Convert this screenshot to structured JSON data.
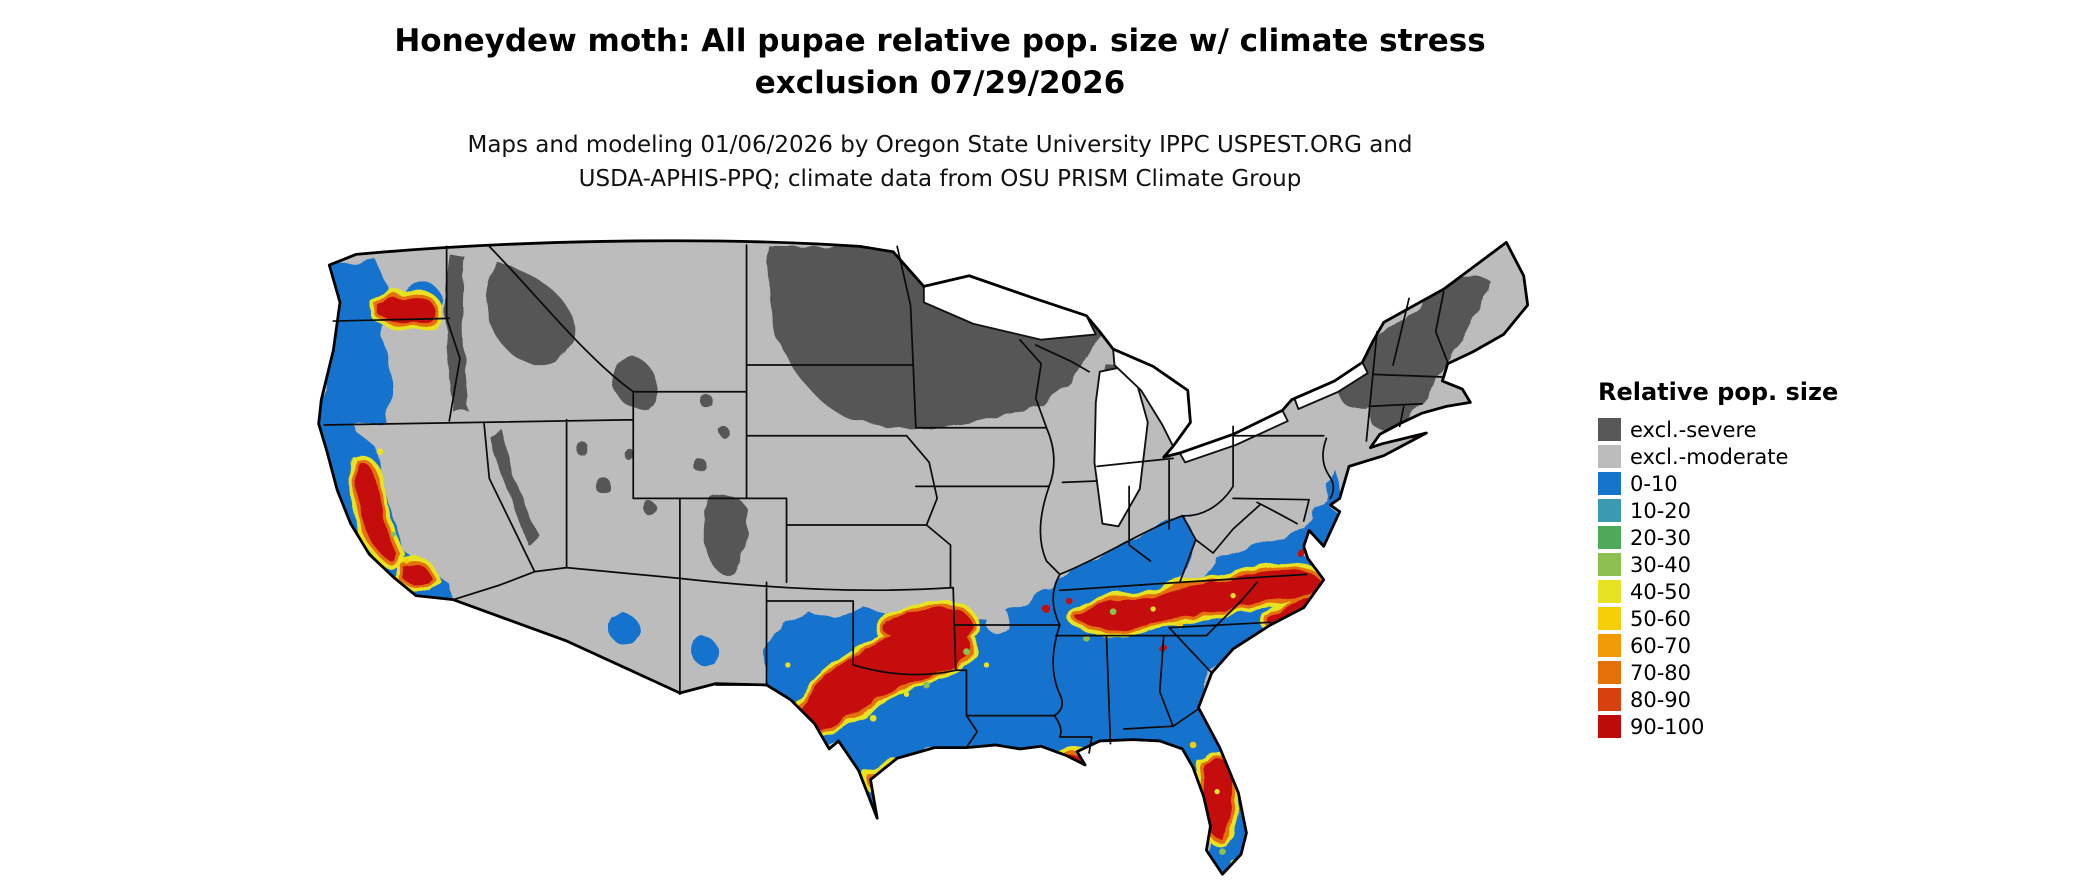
{
  "title": "Honeydew moth: All pupae relative pop. size w/ climate stress exclusion 07/29/2026",
  "subtitle": "Maps and modeling 01/06/2026 by Oregon State University IPPC USPEST.ORG and USDA-APHIS-PPQ; climate data from OSU PRISM Climate Group",
  "legend": {
    "title": "Relative pop. size",
    "items": [
      {
        "label": "excl.-severe",
        "color": "#575757"
      },
      {
        "label": "excl.-moderate",
        "color": "#bcbcbc"
      },
      {
        "label": "0-10",
        "color": "#1873cd"
      },
      {
        "label": "10-20",
        "color": "#3b9ab0"
      },
      {
        "label": "20-30",
        "color": "#4fa95a"
      },
      {
        "label": "30-40",
        "color": "#8cc051"
      },
      {
        "label": "40-50",
        "color": "#e8e322"
      },
      {
        "label": "50-60",
        "color": "#f5ce0a"
      },
      {
        "label": "60-70",
        "color": "#f29b06"
      },
      {
        "label": "70-80",
        "color": "#e47108"
      },
      {
        "label": "80-90",
        "color": "#d94010"
      },
      {
        "label": "90-100",
        "color": "#bf0a0a"
      }
    ]
  },
  "map": {
    "region": "Continental United States"
  }
}
